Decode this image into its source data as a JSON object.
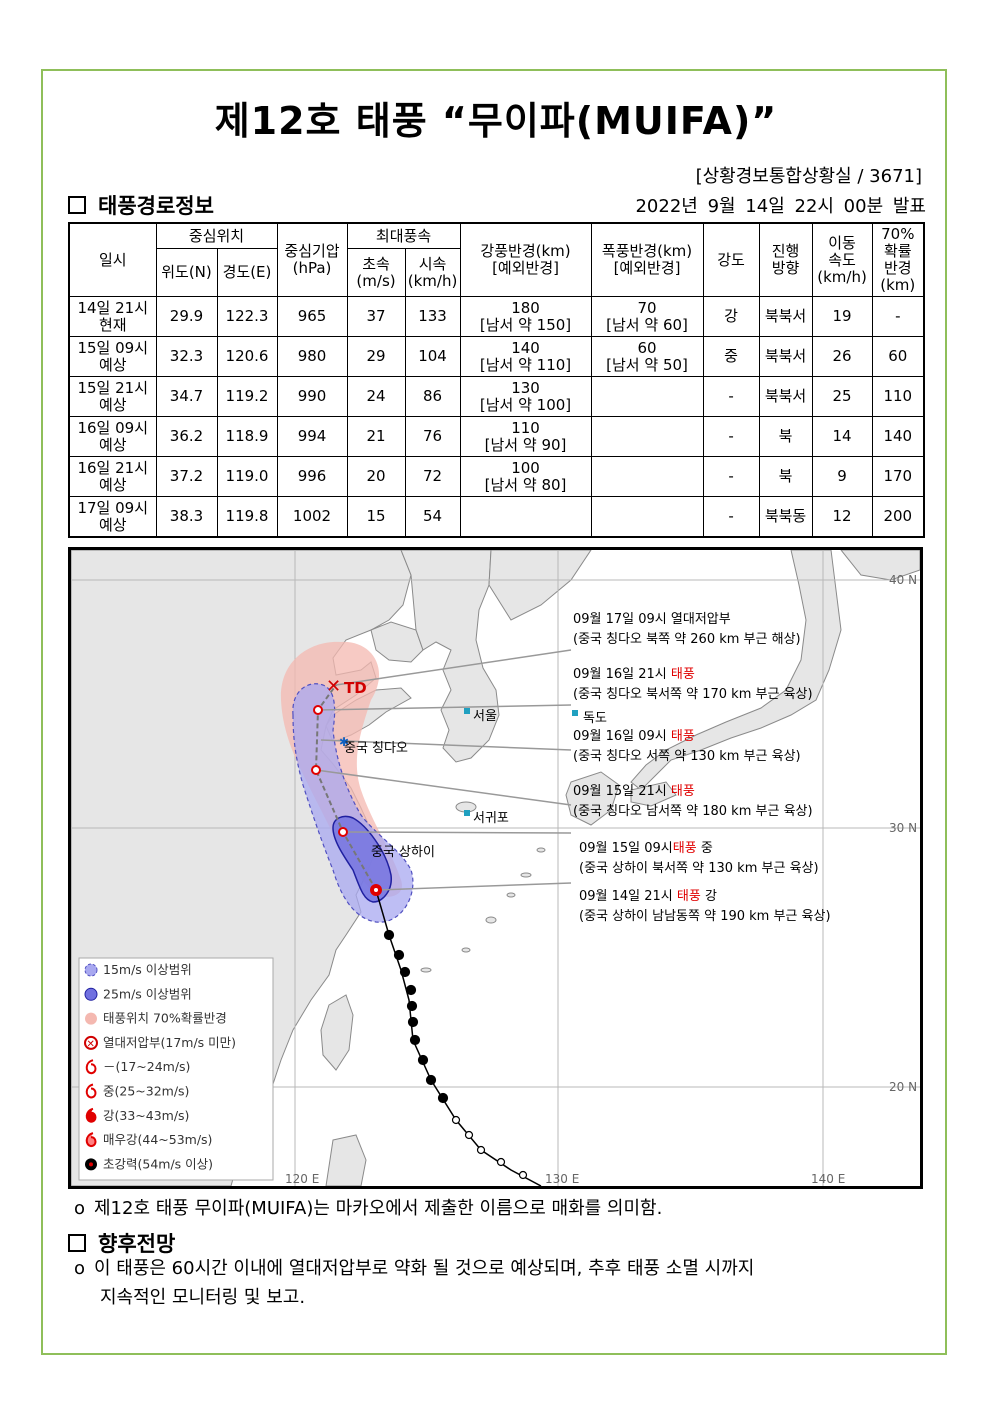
{
  "title": "제12호 태풍 “무이파(MUIFA)”",
  "department": "[상황경보통합상황실 / 3671]",
  "section1": "태풍경로정보",
  "announcement": "2022년 9월 14일 22시 00분 발표",
  "table": {
    "h_time": "일시",
    "h_center": "중심위치",
    "h_lat": "위도(N)",
    "h_lon": "경도(E)",
    "h_pressure": "중심기압(hPa)",
    "h_maxwind": "최대풍속",
    "h_ms": "초속(m/s)",
    "h_kmh": "시속(km/h)",
    "h_strong": "강풍반경(km)[예외반경]",
    "h_storm": "폭풍반경(km)[예외반경]",
    "h_intensity": "강도",
    "h_dir": "진행방향",
    "h_speed": "이동속도(km/h)",
    "h_prob": "70%확률반경(km)",
    "rows": [
      {
        "t1": "14일 21시",
        "t2": "현재",
        "lat": "29.9",
        "lon": "122.3",
        "p": "965",
        "ms": "37",
        "kmh": "133",
        "s1": "180",
        "s2": "[남서 약 150]",
        "st1": "70",
        "st2": "[남서 약 60]",
        "int": "강",
        "dir": "북북서",
        "spd": "19",
        "prob": "-"
      },
      {
        "t1": "15일 09시",
        "t2": "예상",
        "lat": "32.3",
        "lon": "120.6",
        "p": "980",
        "ms": "29",
        "kmh": "104",
        "s1": "140",
        "s2": "[남서 약 110]",
        "st1": "60",
        "st2": "[남서 약 50]",
        "int": "중",
        "dir": "북북서",
        "spd": "26",
        "prob": "60"
      },
      {
        "t1": "15일 21시",
        "t2": "예상",
        "lat": "34.7",
        "lon": "119.2",
        "p": "990",
        "ms": "24",
        "kmh": "86",
        "s1": "130",
        "s2": "[남서 약 100]",
        "st1": "",
        "st2": "",
        "int": "-",
        "dir": "북북서",
        "spd": "25",
        "prob": "110"
      },
      {
        "t1": "16일 09시",
        "t2": "예상",
        "lat": "36.2",
        "lon": "118.9",
        "p": "994",
        "ms": "21",
        "kmh": "76",
        "s1": "110",
        "s2": "[남서 약 90]",
        "st1": "",
        "st2": "",
        "int": "-",
        "dir": "북",
        "spd": "14",
        "prob": "140"
      },
      {
        "t1": "16일 21시",
        "t2": "예상",
        "lat": "37.2",
        "lon": "119.0",
        "p": "996",
        "ms": "20",
        "kmh": "72",
        "s1": "100",
        "s2": "[남서 약 80]",
        "st1": "",
        "st2": "",
        "int": "-",
        "dir": "북",
        "spd": "9",
        "prob": "170"
      },
      {
        "t1": "17일 09시",
        "t2": "예상",
        "lat": "38.3",
        "lon": "119.8",
        "p": "1002",
        "ms": "15",
        "kmh": "54",
        "s1": "",
        "s2": "",
        "st1": "",
        "st2": "",
        "int": "-",
        "dir": "북북동",
        "spd": "12",
        "prob": "200"
      }
    ]
  },
  "map": {
    "lat40": "40 N",
    "lat30": "30 N",
    "lat20": "20 N",
    "lon120": "120 E",
    "lon130": "130 E",
    "lon140": "140 E",
    "td": "TD",
    "places": {
      "seoul": "서울",
      "dokdo": "독도",
      "qingdao": "중국 칭다오",
      "seogwipo": "서귀포",
      "shanghai": "중국 상하이"
    },
    "labels": [
      {
        "a": "09월 17일 09시 열대저압부",
        "b": "",
        "c": "",
        "d": "(중국 칭다오 북쪽 약 260 km 부근 해상)"
      },
      {
        "a": "09월 16일 21시 ",
        "b": "태풍",
        "c": "",
        "d": "(중국 칭다오 북서쪽 약 170 km 부근 육상)"
      },
      {
        "a": "09월 16일 09시 ",
        "b": "태풍",
        "c": "",
        "d": "(중국 칭다오 서쪽 약 130 km 부근 육상)"
      },
      {
        "a": "09월 15일 21시 ",
        "b": "태풍",
        "c": "",
        "d": "(중국 칭다오 남서쪽 약 180 km 부근 육상)"
      },
      {
        "a": "09월 15일 09시",
        "b": "태풍",
        "c": " 중",
        "d": "(중국 상하이 북서쪽 약 130 km 부근 육상)"
      },
      {
        "a": "09월 14일 21시 ",
        "b": "태풍",
        "c": " 강",
        "d": "(중국 상하이 남남동쪽 약 190 km 부근 육상)"
      }
    ],
    "legend": [
      "15m/s 이상범위",
      "25m/s 이상범위",
      "태풍위치 70%확률반경",
      "열대저압부(17m/s 미만)",
      "－(17~24m/s)",
      "중(25~32m/s)",
      "강(33~43m/s)",
      "매우강(44~53m/s)",
      "초강력(54m/s 이상)"
    ],
    "colors": {
      "sea": "#ffffff",
      "land": "#e4e4e4",
      "track": "#000000",
      "typhoon_red": "#e00000",
      "range15": "#a8a8f0",
      "range25": "#7070e0",
      "prob70": "#f4b8b0"
    }
  },
  "note1": "제12호 태풍 무이파(MUIFA)는 마카오에서 제출한 이름으로 매화를 의미함.",
  "section2": "향후전망",
  "note2a": "이 태풍은 60시간 이내에 열대저압부로 약화 될 것으로 예상되며, 추후 태풍 소멸 시까지",
  "note2b": "지속적인 모니터링 및 보고.",
  "bullet": "o"
}
